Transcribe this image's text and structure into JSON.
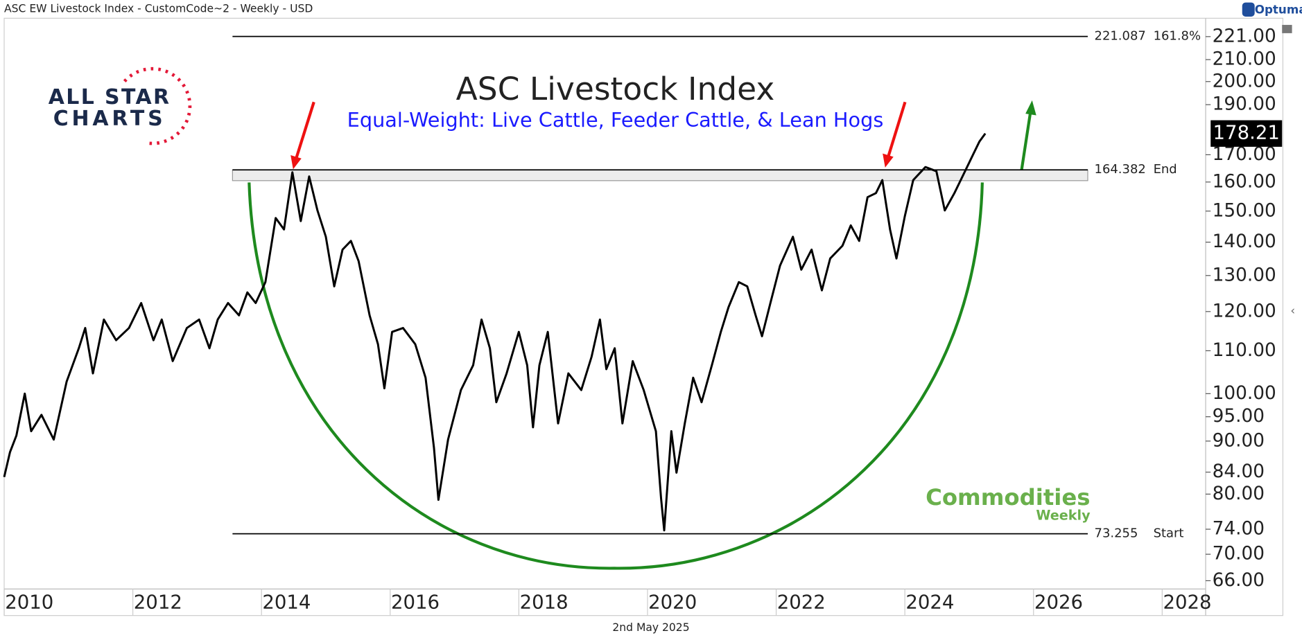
{
  "header": {
    "title": "ASC EW Livestock Index - CustomCode~2 - Weekly - USD",
    "brand": "Optuma",
    "date": "2nd May 2025"
  },
  "logos": {
    "left": [
      "ALL STAR",
      "CHARTS"
    ],
    "right": [
      "Commodities",
      "Weekly"
    ]
  },
  "chart_data": {
    "type": "line",
    "title": "ASC Livestock Index",
    "subtitle": "Equal-Weight: Live Cattle, Feeder Cattle, & Lean Hogs",
    "log_scale": true,
    "xlim": [
      2010,
      2028.65
    ],
    "xticks": [
      2010,
      2012,
      2014,
      2016,
      2018,
      2020,
      2022,
      2024,
      2026,
      2028
    ],
    "ylim": [
      64.8,
      230.2
    ],
    "yticks": [
      {
        "value": 221,
        "label": "221.00"
      },
      {
        "value": 210,
        "label": "210.00"
      },
      {
        "value": 200,
        "label": "200.00"
      },
      {
        "value": 190,
        "label": "190.00"
      },
      {
        "value": 170,
        "label": "170.00"
      },
      {
        "value": 160,
        "label": "160.00"
      },
      {
        "value": 150,
        "label": "150.00"
      },
      {
        "value": 140,
        "label": "140.00"
      },
      {
        "value": 130,
        "label": "130.00"
      },
      {
        "value": 120,
        "label": "120.00"
      },
      {
        "value": 110,
        "label": "110.00"
      },
      {
        "value": 100,
        "label": "100.00"
      },
      {
        "value": 95,
        "label": "95.00"
      },
      {
        "value": 90,
        "label": "90.00"
      },
      {
        "value": 84,
        "label": "84.00"
      },
      {
        "value": 80,
        "label": "80.00"
      },
      {
        "value": 74,
        "label": "74.00"
      },
      {
        "value": 70,
        "label": "70.00"
      },
      {
        "value": 66,
        "label": "66.00"
      }
    ],
    "levels": [
      {
        "value": 221.087,
        "label": "161.8%"
      },
      {
        "value": 164.382,
        "label": "End"
      },
      {
        "value": 73.255,
        "label": "Start"
      }
    ],
    "x": [
      2010.0,
      2010.09,
      2010.19,
      2010.32,
      2010.42,
      2010.58,
      2010.77,
      2010.97,
      2011.16,
      2011.26,
      2011.38,
      2011.55,
      2011.74,
      2011.94,
      2012.13,
      2012.32,
      2012.45,
      2012.62,
      2012.84,
      2013.03,
      2013.19,
      2013.32,
      2013.48,
      2013.65,
      2013.78,
      2013.91,
      2014.06,
      2014.22,
      2014.35,
      2014.48,
      2014.61,
      2014.74,
      2014.87,
      2015.0,
      2015.13,
      2015.26,
      2015.39,
      2015.51,
      2015.68,
      2015.81,
      2015.91,
      2016.03,
      2016.2,
      2016.39,
      2016.55,
      2016.68,
      2016.75,
      2016.9,
      2017.1,
      2017.29,
      2017.42,
      2017.55,
      2017.65,
      2017.81,
      2018.0,
      2018.13,
      2018.22,
      2018.32,
      2018.45,
      2018.61,
      2018.77,
      2018.97,
      2019.13,
      2019.26,
      2019.36,
      2019.49,
      2019.61,
      2019.77,
      2019.94,
      2020.13,
      2020.21,
      2020.26,
      2020.37,
      2020.45,
      2020.58,
      2020.71,
      2020.84,
      2021.0,
      2021.14,
      2021.26,
      2021.42,
      2021.55,
      2021.68,
      2021.78,
      2021.91,
      2022.06,
      2022.26,
      2022.39,
      2022.55,
      2022.71,
      2022.84,
      2023.03,
      2023.16,
      2023.29,
      2023.42,
      2023.55,
      2023.65,
      2023.77,
      2023.87,
      2024.0,
      2024.13,
      2024.32,
      2024.49,
      2024.62,
      2024.77,
      2024.9,
      2025.06,
      2025.16,
      2025.25
    ],
    "series": [
      {
        "name": "ASC EW Livestock Index",
        "color": "#000000",
        "values": [
          83.1,
          87.8,
          91.1,
          100,
          92.0,
          95.4,
          90.3,
          102.7,
          110.6,
          115.7,
          104.6,
          117.9,
          112.6,
          115.7,
          122.3,
          112.6,
          117.9,
          107.5,
          115.7,
          117.9,
          110.6,
          117.9,
          122.3,
          119.0,
          125.2,
          122.3,
          128.1,
          147.7,
          144.0,
          163.5,
          146.7,
          162.0,
          150.2,
          141.7,
          126.9,
          137.7,
          140.4,
          134.2,
          119.0,
          111.6,
          101.2,
          114.7,
          115.7,
          111.6,
          103.6,
          88.7,
          79.0,
          90.3,
          100.8,
          106.5,
          117.9,
          110.6,
          98.1,
          104.6,
          114.7,
          106.5,
          92.8,
          106.5,
          114.7,
          93.6,
          104.6,
          100.8,
          108.5,
          117.9,
          105.6,
          110.6,
          93.6,
          107.5,
          100.8,
          92.0,
          79.3,
          73.8,
          92.0,
          83.9,
          93.6,
          103.6,
          98.1,
          106.5,
          114.7,
          121.2,
          128.1,
          126.9,
          119.0,
          113.6,
          122.3,
          132.9,
          141.7,
          131.7,
          137.7,
          125.8,
          135.0,
          138.9,
          145.3,
          140.4,
          154.7,
          156.1,
          160.7,
          144.0,
          135.0,
          148.3,
          160.7,
          165.4,
          163.9,
          150.2,
          156.1,
          162.2,
          170.0,
          175.1,
          178.21
        ]
      }
    ]
  }
}
